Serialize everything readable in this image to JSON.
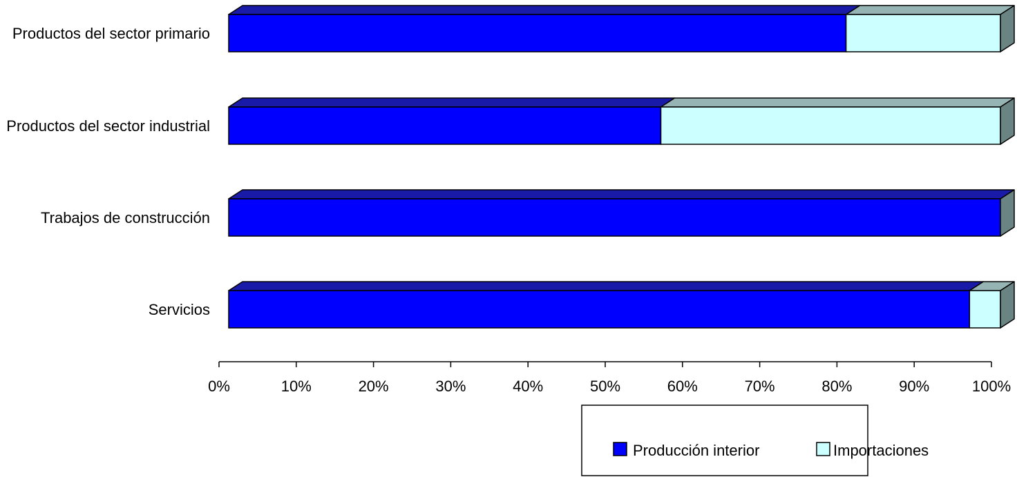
{
  "chart_data": {
    "type": "bar",
    "orientation": "horizontal",
    "stacked": "percent",
    "style": "3d",
    "categories": [
      "Productos del sector primario",
      "Productos del sector industrial",
      "Trabajos de construcción",
      "Servicios"
    ],
    "series": [
      {
        "name": "Producción interior",
        "values": [
          80,
          56,
          100,
          96
        ]
      },
      {
        "name": "Importaciones",
        "values": [
          20,
          44,
          0,
          4
        ]
      }
    ],
    "x_ticks": [
      "0%",
      "10%",
      "20%",
      "30%",
      "40%",
      "50%",
      "60%",
      "70%",
      "80%",
      "90%",
      "100%"
    ],
    "xlim": [
      0,
      100
    ],
    "grid": false,
    "legend_position": "bottom-right",
    "colors": {
      "Producción interior": "#0000FF",
      "Producción interior_top": "#1A1AA8",
      "Importaciones": "#CCFFFF",
      "Importaciones_top": "#96B4B4",
      "side": "#6A8484"
    }
  }
}
